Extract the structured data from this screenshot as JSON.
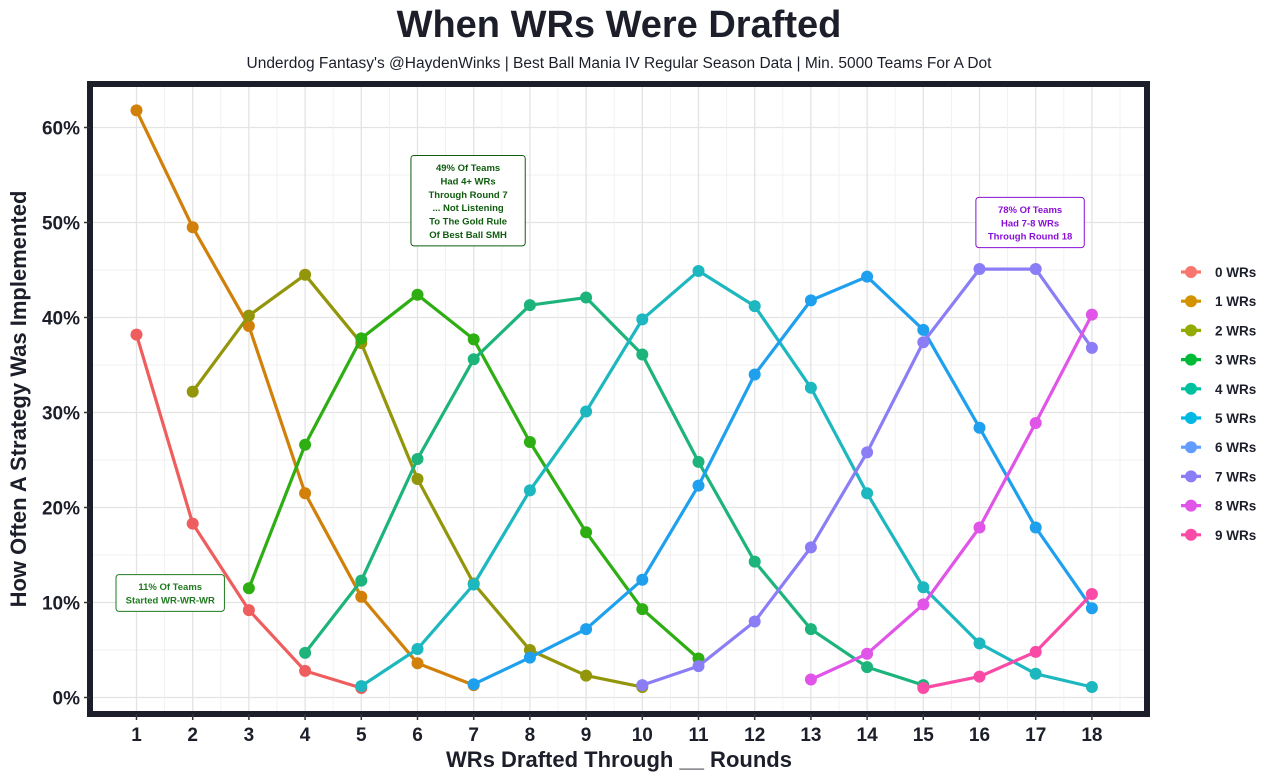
{
  "title": "When WRs Were Drafted",
  "subtitle": "Underdog Fantasy's @HaydenWinks | Best Ball Mania IV Regular Season Data | Min. 5000 Teams For A Dot",
  "chart_data": {
    "type": "line",
    "title": "When WRs Were Drafted",
    "xlabel": "WRs Drafted Through __ Rounds",
    "ylabel": "How Often A Strategy Was Implemented",
    "x": [
      1,
      2,
      3,
      4,
      5,
      6,
      7,
      8,
      9,
      10,
      11,
      12,
      13,
      14,
      15,
      16,
      17,
      18
    ],
    "x_tick_labels": [
      "1",
      "2",
      "3",
      "4",
      "5",
      "6",
      "7",
      "8",
      "9",
      "10",
      "11",
      "12",
      "13",
      "14",
      "15",
      "16",
      "17",
      "18"
    ],
    "ylim": [
      0,
      64
    ],
    "y_ticks": [
      0,
      10,
      20,
      30,
      40,
      50,
      60
    ],
    "y_tick_labels": [
      "0%",
      "10%",
      "20%",
      "30%",
      "40%",
      "50%",
      "60%"
    ],
    "grid": true,
    "legend_position": "right",
    "series": [
      {
        "name": "0 WRs",
        "color": "#F8766D",
        "points": [
          [
            1,
            38.2
          ],
          [
            2,
            18.3
          ],
          [
            3,
            9.2
          ],
          [
            4,
            2.8
          ],
          [
            5,
            1.0
          ]
        ]
      },
      {
        "name": "1 WRs",
        "color": "#D39200",
        "points": [
          [
            1,
            61.8
          ],
          [
            2,
            49.5
          ],
          [
            3,
            39.1
          ],
          [
            4,
            21.5
          ],
          [
            5,
            10.6
          ],
          [
            6,
            3.6
          ],
          [
            7,
            1.3
          ]
        ]
      },
      {
        "name": "2 WRs",
        "color": "#93AA00",
        "points": [
          [
            2,
            32.2
          ],
          [
            3,
            40.2
          ],
          [
            4,
            44.5
          ],
          [
            5,
            37.3
          ],
          [
            6,
            23.0
          ],
          [
            7,
            12.0
          ],
          [
            8,
            5.0
          ],
          [
            9,
            2.3
          ],
          [
            10,
            1.1
          ]
        ]
      },
      {
        "name": "3 WRs",
        "color": "#00BA38",
        "points": [
          [
            3,
            11.5
          ],
          [
            4,
            26.6
          ],
          [
            5,
            37.8
          ],
          [
            6,
            42.4
          ],
          [
            7,
            37.7
          ],
          [
            8,
            26.9
          ],
          [
            9,
            17.4
          ],
          [
            10,
            9.3
          ],
          [
            11,
            4.1
          ]
        ]
      },
      {
        "name": "4 WRs",
        "color": "#00C19F",
        "points": [
          [
            4,
            4.7
          ],
          [
            5,
            12.3
          ],
          [
            6,
            25.1
          ],
          [
            7,
            35.6
          ],
          [
            8,
            41.3
          ],
          [
            9,
            42.1
          ],
          [
            10,
            36.1
          ],
          [
            11,
            24.8
          ],
          [
            12,
            14.3
          ],
          [
            13,
            7.2
          ],
          [
            14,
            3.2
          ],
          [
            15,
            1.3
          ]
        ]
      },
      {
        "name": "5 WRs",
        "color": "#00B9E3",
        "points": [
          [
            5,
            1.2
          ],
          [
            6,
            5.1
          ],
          [
            7,
            11.9
          ],
          [
            8,
            21.8
          ],
          [
            9,
            30.1
          ],
          [
            10,
            39.8
          ],
          [
            11,
            44.9
          ],
          [
            12,
            41.2
          ],
          [
            13,
            32.6
          ],
          [
            14,
            21.5
          ],
          [
            15,
            11.6
          ],
          [
            16,
            5.7
          ],
          [
            17,
            2.5
          ],
          [
            18,
            1.1
          ]
        ]
      },
      {
        "name": "6 WRs",
        "color": "#619CFF",
        "points": [
          [
            7,
            1.4
          ],
          [
            8,
            4.2
          ],
          [
            9,
            7.2
          ],
          [
            10,
            12.4
          ],
          [
            11,
            22.3
          ],
          [
            12,
            34.0
          ],
          [
            13,
            41.8
          ],
          [
            14,
            44.3
          ],
          [
            15,
            38.7
          ],
          [
            16,
            28.4
          ],
          [
            17,
            17.9
          ],
          [
            18,
            9.4
          ]
        ]
      },
      {
        "name": "7 WRs",
        "color": "#DB72FB",
        "points": [
          [
            10,
            1.3
          ],
          [
            11,
            3.3
          ],
          [
            12,
            8.0
          ],
          [
            13,
            15.8
          ],
          [
            14,
            25.8
          ],
          [
            15,
            37.4
          ],
          [
            16,
            45.1
          ],
          [
            17,
            45.1
          ],
          [
            18,
            36.8
          ]
        ]
      },
      {
        "name": "8 WRs",
        "color": "#FF61C3",
        "points": [
          [
            13,
            1.9
          ],
          [
            14,
            4.6
          ],
          [
            15,
            9.8
          ],
          [
            16,
            17.9
          ],
          [
            17,
            28.9
          ],
          [
            18,
            40.3
          ]
        ]
      },
      {
        "name": "9 WRs",
        "color": "#FF4FA0",
        "points": [
          [
            15,
            1.0
          ],
          [
            16,
            2.2
          ],
          [
            17,
            4.8
          ],
          [
            18,
            10.9
          ]
        ]
      }
    ],
    "legend_colors": [
      "#F8766D",
      "#D39200",
      "#93AA00",
      "#00BA38",
      "#00C19F",
      "#00B9E3",
      "#619CFF",
      "#8B7DF5",
      "#E055E8",
      "#F94BA6"
    ],
    "line_colors": [
      "#EF5E5E",
      "#D1800A",
      "#93960A",
      "#2DAE12",
      "#1DB47C",
      "#1CB7BF",
      "#1FA0EE",
      "#8B7DF5",
      "#E055E8",
      "#F94BA6"
    ],
    "annotations": [
      {
        "lines": [
          "11% Of Teams",
          "Started WR-WR-WR"
        ],
        "color": "#1F7A1F",
        "x": 1.6,
        "y": 11.0
      },
      {
        "lines": [
          "49% Of Teams",
          "Had 4+ WRs",
          "Through Round 7",
          "... Not Listening",
          "To The Gold Rule",
          "Of Best Ball SMH"
        ],
        "color": "#0F5C0F",
        "x": 6.9,
        "y": 52.3
      },
      {
        "lines": [
          "78% Of Teams",
          "Had 7-8 WRs",
          "Through Round 18"
        ],
        "color": "#8A10D6",
        "x": 16.9,
        "y": 50.0
      }
    ]
  }
}
